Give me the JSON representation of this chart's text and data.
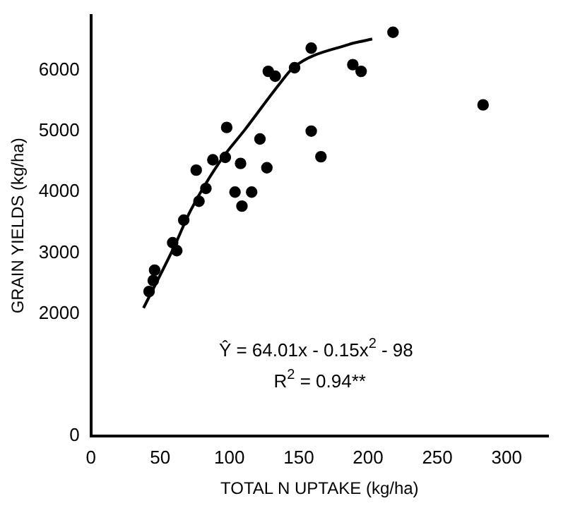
{
  "chart_data": {
    "type": "scatter",
    "xlabel": "TOTAL N UPTAKE (kg/ha)",
    "ylabel": "GRAIN YIELDS (kg/ha)",
    "xlim": [
      0,
      330
    ],
    "xticks": [
      0,
      50,
      100,
      150,
      200,
      250,
      300
    ],
    "ylim": [
      0,
      6900
    ],
    "yticks": [
      0,
      2000,
      3000,
      4000,
      5000,
      6000
    ],
    "grid": false,
    "legend": false,
    "marker": "circle",
    "series": [
      {
        "color": "#000000",
        "x": [
          159,
          128,
          133,
          147,
          98,
          122,
          76,
          88,
          97,
          108,
          83,
          78,
          67,
          59,
          62,
          46,
          45,
          42,
          218,
          189
        ],
        "values": [
          6360,
          5980,
          5900,
          6040,
          5060,
          4870,
          4360,
          4530,
          4570,
          4470,
          4060,
          3850,
          3540,
          3170,
          3040,
          2720,
          2550,
          2370,
          6620,
          6090
        ]
      },
      {
        "color": "#000000",
        "x": [
          127,
          104,
          116,
          109,
          195,
          159,
          166,
          283
        ],
        "values": [
          4400,
          4000,
          4000,
          3770,
          5980,
          5000,
          4580,
          5430
        ]
      },
      {
        "type": "line",
        "color": "#000000",
        "marker": "none",
        "x": [
          38,
          60,
          72,
          94,
          111,
          136,
          146,
          186,
          203
        ],
        "values": [
          2100,
          3100,
          3700,
          4530,
          5020,
          5770,
          6040,
          6420,
          6510
        ]
      }
    ],
    "annotations": [
      "Ŷ = 64.01x - 0.15x$^{2}$ - 98",
      "R$^{2}$ = 0.94**"
    ]
  }
}
